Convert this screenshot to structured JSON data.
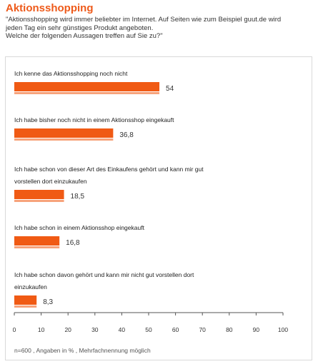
{
  "header": {
    "title": "Aktionsshopping",
    "intro_lines": [
      "\"Aktionsshopping wird immer beliebter im Internet. Auf Seiten wie zum Beispiel guut.de wird",
      "jeden Tag ein sehr günstiges Produkt angeboten.",
      "Welche der folgenden Aussagen treffen auf Sie zu?\""
    ]
  },
  "chart_data": {
    "type": "bar",
    "orientation": "horizontal",
    "categories": [
      [
        "Ich kenne das Aktionsshopping noch nicht"
      ],
      [
        "Ich habe bisher noch nicht in einem Aktionsshop eingekauft"
      ],
      [
        "Ich habe schon von dieser Art des Einkaufens gehört und kann mir gut",
        "vorstellen dort einzukaufen"
      ],
      [
        "Ich habe schon in einem Aktionsshop eingekauft"
      ],
      [
        "Ich habe schon davon gehört und kann mir nicht gut vorstellen dort",
        "einzukaufen"
      ]
    ],
    "values": [
      54,
      36.8,
      18.5,
      16.8,
      8.3
    ],
    "value_labels": [
      "54",
      "36,8",
      "18,5",
      "16,8",
      "8,3"
    ],
    "xlim": [
      0,
      100
    ],
    "xticks": [
      0,
      10,
      20,
      30,
      40,
      50,
      60,
      70,
      80,
      90,
      100
    ],
    "grid": false,
    "colors": {
      "bar": "#f05a14",
      "bar_underline": "#f7a27a",
      "title": "#ee5a1a"
    }
  },
  "footnote": "n=600 , Angaben in % , Mehrfachnennung möglich"
}
